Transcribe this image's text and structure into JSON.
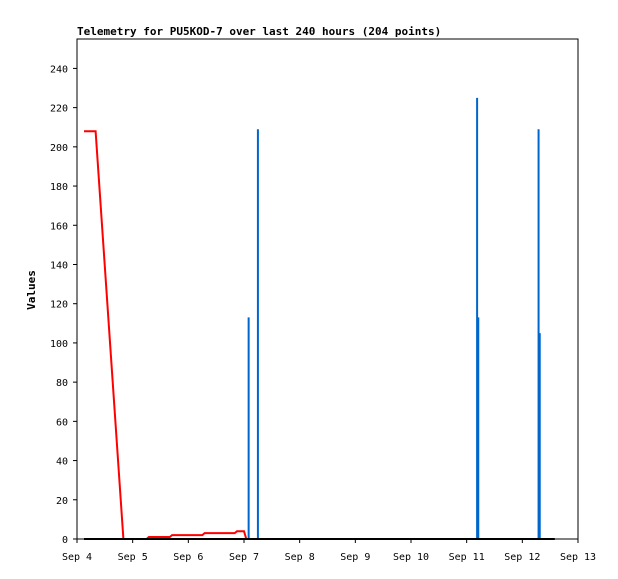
{
  "chart_data": {
    "type": "line",
    "title": "Telemetry for PU5KOD-7 over last 240 hours (204 points)",
    "xlabel": "",
    "ylabel": "Values",
    "ylim": [
      0,
      255
    ],
    "y_ticks": [
      0,
      20,
      40,
      60,
      80,
      100,
      120,
      140,
      160,
      180,
      200,
      220,
      240
    ],
    "x_range": [
      "Sep 4",
      "Sep 13"
    ],
    "x_ticks": [
      "Sep 4",
      "Sep 5",
      "Sep 6",
      "Sep 7",
      "Sep 8",
      "Sep 9",
      "Sep 10",
      "Sep 11",
      "Sep 12",
      "Sep 13"
    ],
    "grid": false,
    "legend": "none",
    "series": [
      {
        "color": "#ff0000",
        "points": [
          [
            "Sep 4 03:00",
            208
          ],
          [
            "Sep 4 08:00",
            208
          ],
          [
            "Sep 4 20:00",
            0
          ],
          [
            "Sep 5 06:00",
            0
          ],
          [
            "Sep 5 07:00",
            1
          ],
          [
            "Sep 5 16:00",
            1
          ],
          [
            "Sep 5 17:00",
            2
          ],
          [
            "Sep 6 06:00",
            2
          ],
          [
            "Sep 6 07:00",
            3
          ],
          [
            "Sep 6 20:00",
            3
          ],
          [
            "Sep 6 21:00",
            4
          ],
          [
            "Sep 7 00:00",
            4
          ],
          [
            "Sep 7 01:00",
            0
          ]
        ]
      },
      {
        "color": "#0066cc",
        "type": "bar",
        "points": [
          [
            "Sep 7 02:00",
            113
          ],
          [
            "Sep 7 06:00",
            209
          ],
          [
            "Sep 11 04:30",
            225
          ],
          [
            "Sep 11 05:00",
            113
          ],
          [
            "Sep 12 07:00",
            209
          ],
          [
            "Sep 12 07:30",
            105
          ]
        ]
      },
      {
        "color": "#000000",
        "points": [
          [
            "Sep 4 03:00",
            0
          ],
          [
            "Sep 12 14:00",
            0
          ]
        ]
      }
    ]
  },
  "colors": {
    "red_series": "#ff0000",
    "blue_series": "#0066cc",
    "axis": "#000000"
  }
}
